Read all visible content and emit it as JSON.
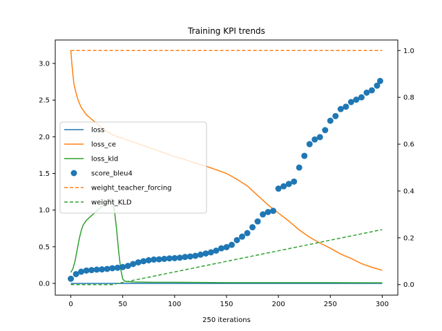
{
  "chart_data": {
    "type": "line",
    "title": "Training KPI trends",
    "xlabel": "250 iterations",
    "xlim": [
      -15,
      315
    ],
    "ylim_left": [
      -0.16,
      3.32
    ],
    "ylim_right": [
      -0.045,
      1.045
    ],
    "x_ticks": [
      0,
      50,
      100,
      150,
      200,
      250,
      300
    ],
    "y_left_ticks": [
      0.0,
      0.5,
      1.0,
      1.5,
      2.0,
      2.5,
      3.0
    ],
    "y_right_ticks": [
      0.0,
      0.2,
      0.4,
      0.6,
      0.8,
      1.0
    ],
    "legend_position": "center-left",
    "series": [
      {
        "name": "loss",
        "axis": "left",
        "style": "solid",
        "color": "#1f77b4",
        "x": [
          0,
          300
        ],
        "y": [
          0.0,
          0.0
        ]
      },
      {
        "name": "loss_ce",
        "axis": "left",
        "style": "solid",
        "color": "#ff7f0e",
        "x": [
          0,
          1,
          2,
          3,
          5,
          7,
          10,
          15,
          20,
          25,
          30,
          35,
          40,
          45,
          50,
          55,
          60,
          70,
          80,
          90,
          100,
          110,
          120,
          130,
          140,
          150,
          160,
          170,
          180,
          190,
          200,
          210,
          220,
          230,
          240,
          250,
          260,
          270,
          280,
          290,
          300
        ],
        "y": [
          3.18,
          3.0,
          2.85,
          2.72,
          2.6,
          2.5,
          2.4,
          2.3,
          2.24,
          2.18,
          2.12,
          2.07,
          2.03,
          2.0,
          1.98,
          1.95,
          1.93,
          1.88,
          1.83,
          1.78,
          1.73,
          1.69,
          1.64,
          1.6,
          1.55,
          1.5,
          1.42,
          1.33,
          1.2,
          1.07,
          0.96,
          0.85,
          0.73,
          0.63,
          0.55,
          0.48,
          0.4,
          0.34,
          0.27,
          0.22,
          0.18
        ]
      },
      {
        "name": "loss_kld",
        "axis": "left",
        "style": "solid",
        "color": "#2ca02c",
        "x": [
          0,
          2,
          4,
          6,
          8,
          10,
          12,
          15,
          18,
          22,
          26,
          30,
          34,
          38,
          40,
          42,
          44,
          46,
          48,
          50,
          52,
          55,
          60,
          80,
          100,
          150,
          200,
          250,
          300
        ],
        "y": [
          0.15,
          0.2,
          0.3,
          0.45,
          0.6,
          0.72,
          0.8,
          0.86,
          0.9,
          0.95,
          1.0,
          1.05,
          1.1,
          1.15,
          1.15,
          1.0,
          0.75,
          0.45,
          0.2,
          0.06,
          0.03,
          0.025,
          0.02,
          0.015,
          0.015,
          0.01,
          0.01,
          0.01,
          0.008
        ]
      },
      {
        "name": "score_bleu4",
        "axis": "right",
        "style": "marker",
        "color": "#1f77b4",
        "x": [
          0,
          5,
          10,
          15,
          20,
          25,
          30,
          35,
          40,
          45,
          50,
          55,
          60,
          65,
          70,
          75,
          80,
          85,
          90,
          95,
          100,
          105,
          110,
          115,
          120,
          125,
          130,
          135,
          140,
          145,
          150,
          155,
          160,
          165,
          170,
          175,
          180,
          185,
          190,
          195,
          200,
          205,
          210,
          215,
          220,
          225,
          230,
          235,
          240,
          245,
          250,
          255,
          260,
          265,
          270,
          275,
          280,
          285,
          290,
          295,
          298
        ],
        "y": [
          0.025,
          0.045,
          0.055,
          0.06,
          0.062,
          0.064,
          0.065,
          0.067,
          0.07,
          0.072,
          0.075,
          0.08,
          0.088,
          0.095,
          0.1,
          0.104,
          0.107,
          0.108,
          0.11,
          0.112,
          0.113,
          0.115,
          0.118,
          0.12,
          0.123,
          0.128,
          0.133,
          0.138,
          0.145,
          0.155,
          0.16,
          0.17,
          0.19,
          0.205,
          0.22,
          0.245,
          0.27,
          0.3,
          0.31,
          0.315,
          0.41,
          0.42,
          0.43,
          0.44,
          0.5,
          0.55,
          0.6,
          0.62,
          0.63,
          0.66,
          0.7,
          0.72,
          0.75,
          0.76,
          0.78,
          0.79,
          0.8,
          0.82,
          0.83,
          0.85,
          0.87
        ]
      },
      {
        "name": "weight_teacher_forcing",
        "axis": "right",
        "style": "dashed",
        "color": "#ff7f0e",
        "x": [
          0,
          300
        ],
        "y": [
          1.0,
          1.0
        ]
      },
      {
        "name": "weight_KLD",
        "axis": "right",
        "style": "dashed",
        "color": "#2ca02c",
        "x": [
          0,
          40,
          300
        ],
        "y": [
          0.0,
          0.0,
          0.235
        ]
      }
    ]
  }
}
